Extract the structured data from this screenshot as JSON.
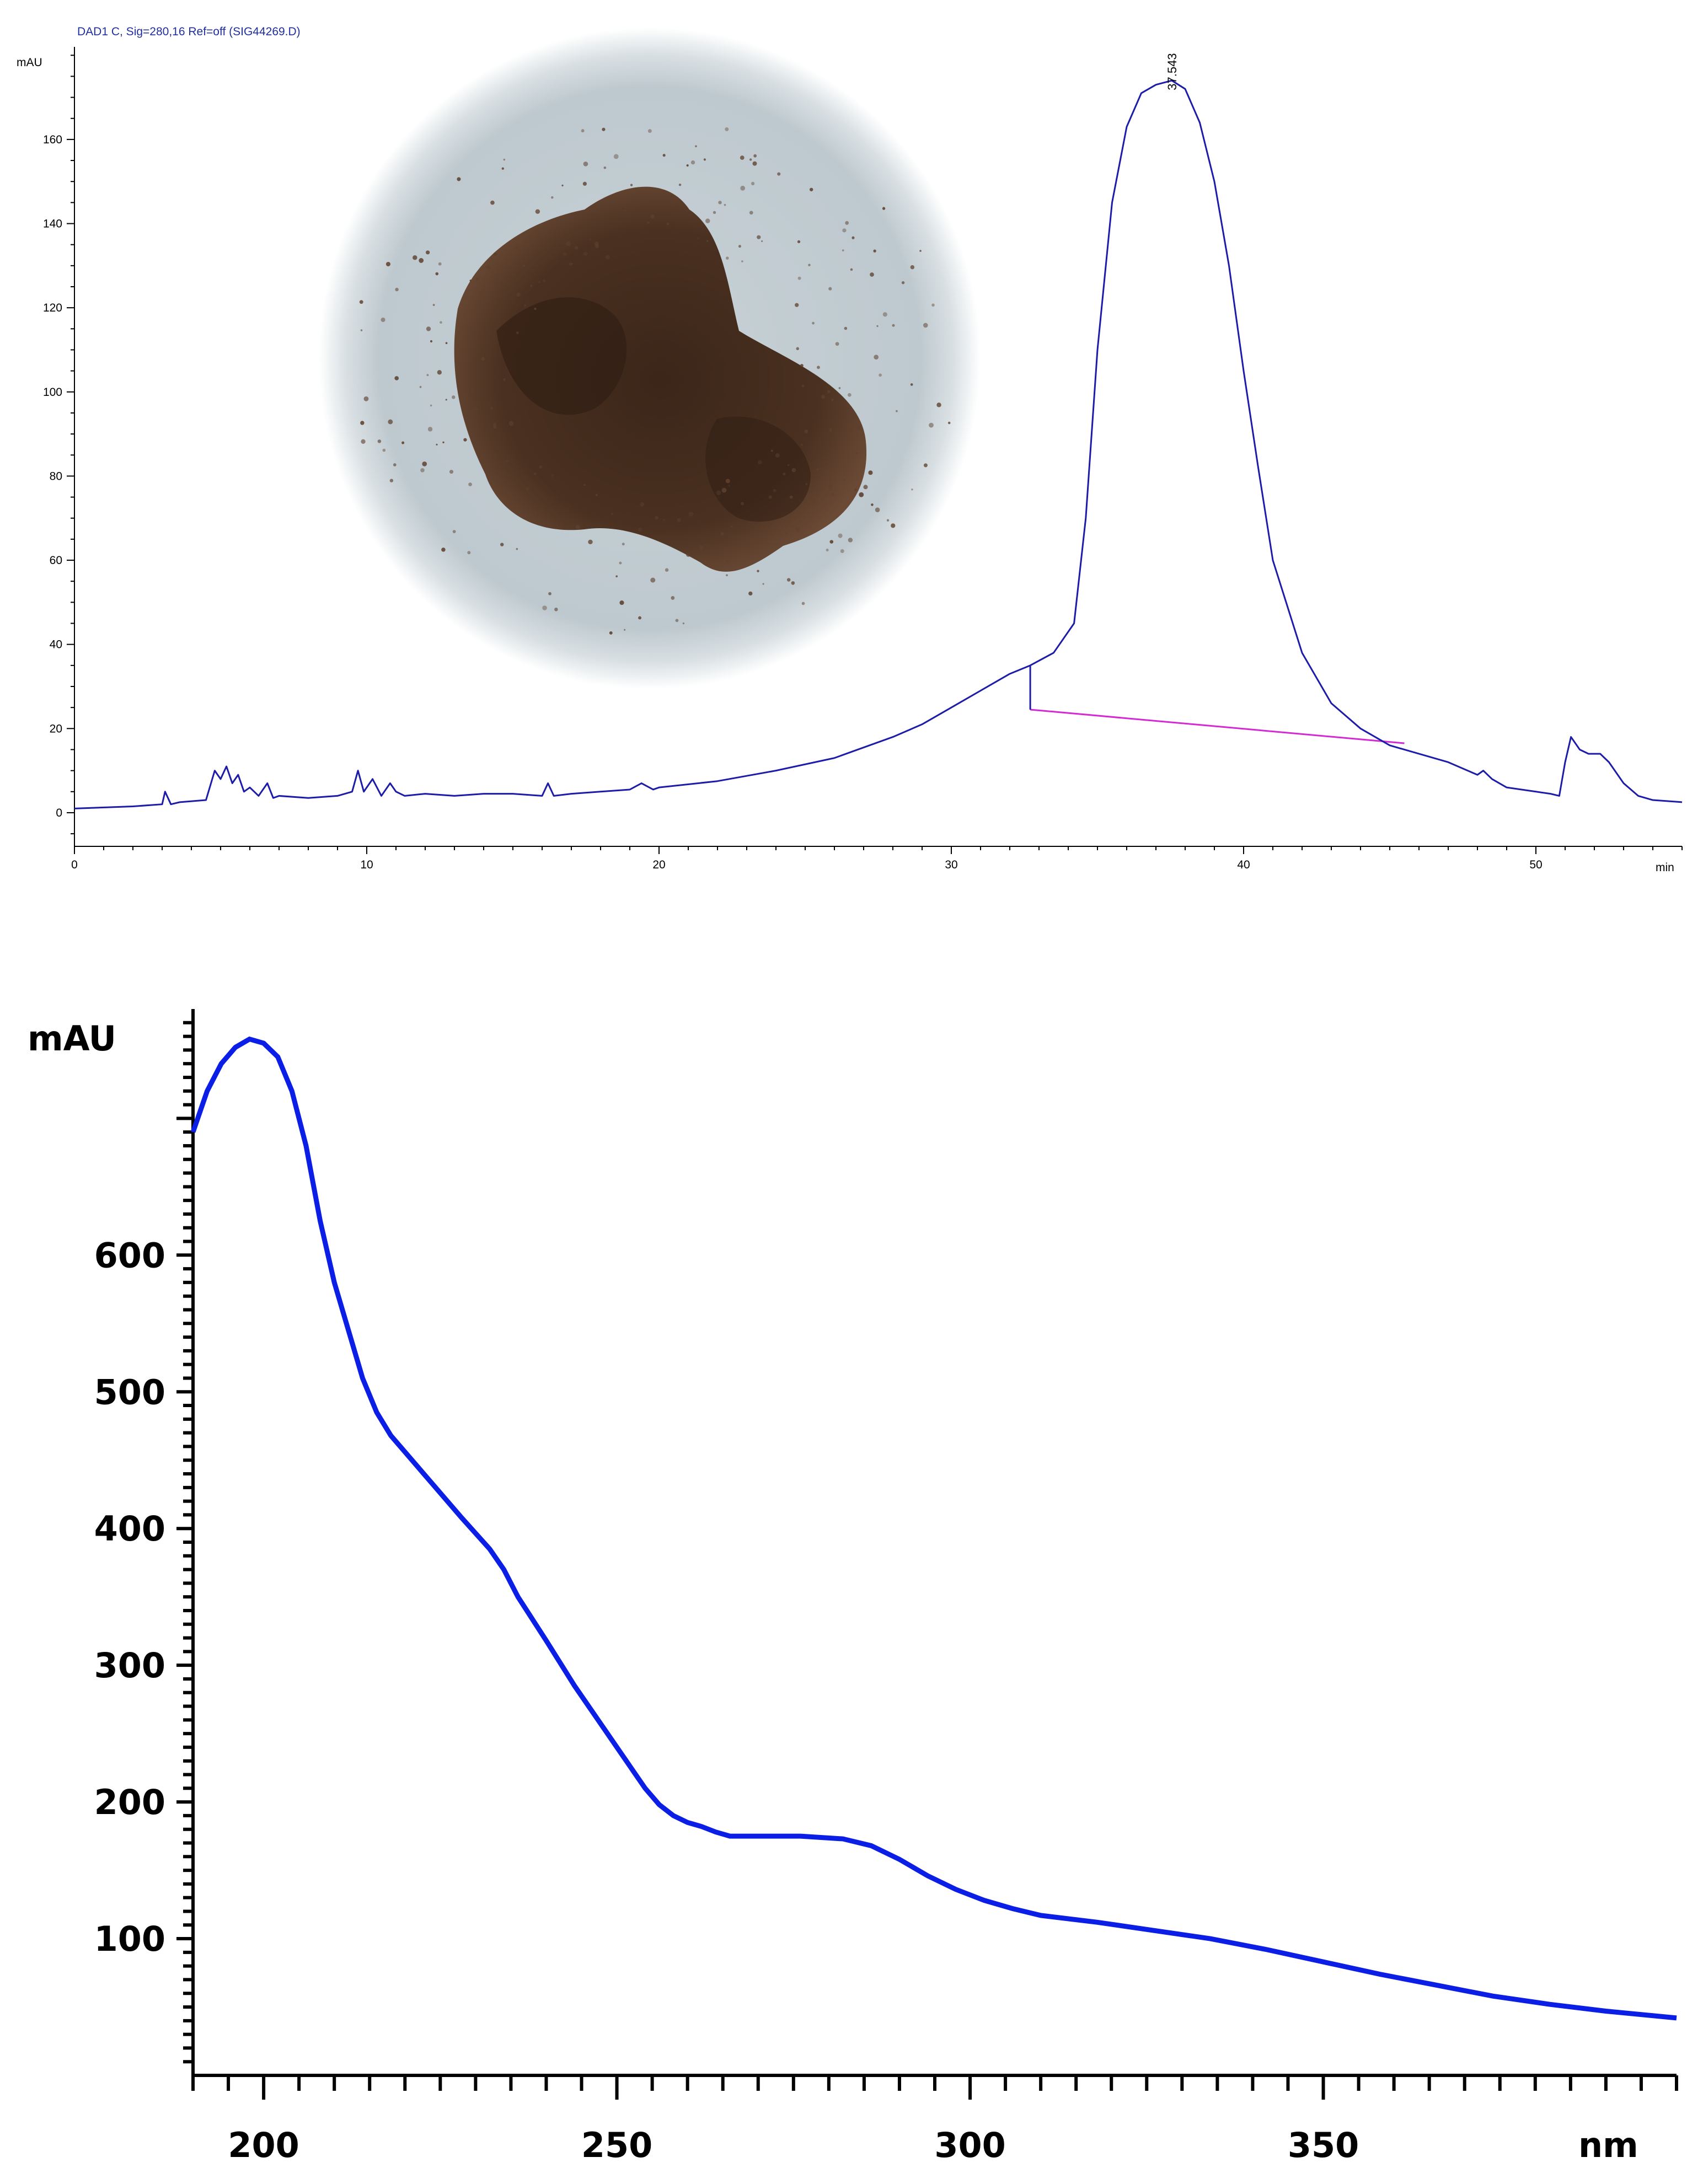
{
  "colors": {
    "trace": "#1c1ca8",
    "baseline": "#d22bd2",
    "spectrum": "#0a1ee6",
    "axis": "#000000"
  },
  "chart_data": [
    {
      "type": "line",
      "title": "DAD1 C, Sig=280,16 Ref=off (SIG44269.D)",
      "ylabel": "mAU",
      "xlabel": "min",
      "xlim": [
        0,
        55
      ],
      "ylim": [
        -8,
        182
      ],
      "xticks": [
        0,
        10,
        20,
        30,
        40,
        50
      ],
      "yticks": [
        0,
        20,
        40,
        60,
        80,
        100,
        120,
        140,
        160
      ],
      "grid": false,
      "peak_label": {
        "x": 37.543,
        "text": "37.543"
      },
      "integration_baseline": {
        "x": [
          32.7,
          45.5
        ],
        "y": [
          24.5,
          16.5
        ]
      },
      "inset_image": "brown-powder-sample-photo",
      "series": [
        {
          "x": [
            0,
            2,
            3.0,
            3.1,
            3.3,
            3.6,
            4.5,
            4.8,
            5.0,
            5.2,
            5.4,
            5.6,
            5.8,
            6.0,
            6.3,
            6.6,
            6.8,
            7.0,
            8.0,
            9.0,
            9.5,
            9.7,
            9.9,
            10.2,
            10.5,
            10.8,
            11.0,
            11.3,
            12,
            13,
            14,
            15,
            16,
            16.2,
            16.4,
            17,
            18,
            19,
            19.4,
            19.8,
            20,
            22,
            24,
            26,
            28,
            29,
            30,
            31,
            32,
            32.7,
            33.5,
            34.2,
            34.6,
            35.0,
            35.5,
            36.0,
            36.5,
            37.0,
            37.543,
            38.0,
            38.5,
            39.0,
            39.5,
            40.0,
            40.5,
            41.0,
            42.0,
            43.0,
            44.0,
            45.0,
            46.0,
            47.0,
            48.0,
            48.2,
            48.5,
            49.0,
            50.0,
            50.5,
            50.8,
            51.0,
            51.2,
            51.5,
            51.8,
            52.2,
            52.5,
            53.0,
            53.5,
            54.0,
            55.0
          ],
          "y": [
            1,
            1.5,
            2,
            5,
            2,
            2.5,
            3,
            10,
            8,
            11,
            7,
            9,
            5,
            6,
            4,
            7,
            3.5,
            4,
            3.5,
            4,
            5,
            10,
            5,
            8,
            4,
            7,
            5,
            4,
            4.5,
            4,
            4.5,
            4.5,
            4,
            7,
            4,
            4.5,
            5,
            5.5,
            7,
            5.5,
            6,
            7.5,
            10,
            13,
            18,
            21,
            25,
            29,
            33,
            35,
            38,
            45,
            70,
            110,
            145,
            163,
            171,
            173,
            174,
            172,
            164,
            150,
            130,
            105,
            82,
            60,
            38,
            26,
            20,
            16,
            14,
            12,
            9,
            10,
            8,
            6,
            5,
            4.5,
            4,
            12,
            18,
            15,
            14,
            14,
            12,
            7,
            4,
            3,
            2.5
          ]
        }
      ]
    },
    {
      "type": "line",
      "title": "",
      "ylabel": "mAU",
      "xlabel": "nm",
      "xlim": [
        190,
        400
      ],
      "ylim": [
        0,
        780
      ],
      "xticks": [
        200,
        250,
        300,
        350
      ],
      "xtick_minor_step": 5,
      "yticks": [
        100,
        200,
        300,
        400,
        500,
        600
      ],
      "ytick_minor_step": 10,
      "grid": false,
      "series": [
        {
          "x": [
            190,
            192,
            194,
            196,
            198,
            200,
            202,
            204,
            206,
            208,
            210,
            212,
            214,
            216,
            218,
            220,
            224,
            228,
            232,
            234,
            236,
            240,
            244,
            248,
            252,
            254,
            256,
            258,
            260,
            262,
            264,
            266,
            270,
            276,
            282,
            286,
            290,
            294,
            298,
            302,
            306,
            310,
            318,
            326,
            334,
            342,
            350,
            358,
            366,
            374,
            382,
            390,
            400
          ],
          "y": [
            690,
            720,
            740,
            752,
            758,
            755,
            745,
            720,
            680,
            625,
            580,
            545,
            510,
            485,
            468,
            456,
            432,
            408,
            385,
            370,
            350,
            318,
            285,
            255,
            225,
            210,
            198,
            190,
            185,
            182,
            178,
            175,
            175,
            175,
            173,
            168,
            158,
            146,
            136,
            128,
            122,
            117,
            112,
            106,
            100,
            92,
            83,
            74,
            66,
            58,
            52,
            47,
            42
          ]
        }
      ]
    }
  ]
}
